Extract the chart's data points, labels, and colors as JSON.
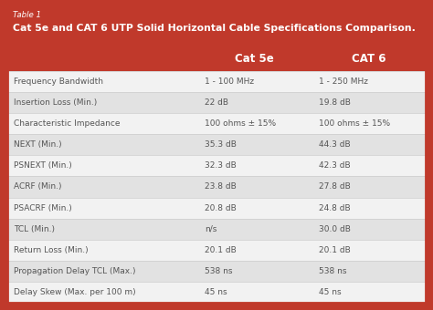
{
  "table_label": "Table 1",
  "title": "Cat 5e and CAT 6 UTP Solid Horizontal Cable Specifications Comparison.",
  "header": [
    "",
    "Cat 5e",
    "CAT 6"
  ],
  "rows": [
    [
      "Frequency Bandwidth",
      "1 - 100 MHz",
      "1 - 250 MHz"
    ],
    [
      "Insertion Loss (Min.)",
      "22 dB",
      "19.8 dB"
    ],
    [
      "Characteristic Impedance",
      "100 ohms ± 15%",
      "100 ohms ± 15%"
    ],
    [
      "NEXT (Min.)",
      "35.3 dB",
      "44.3 dB"
    ],
    [
      "PSNEXT (Min.)",
      "32.3 dB",
      "42.3 dB"
    ],
    [
      "ACRF (Min.)",
      "23.8 dB",
      "27.8 dB"
    ],
    [
      "PSACRF (Min.)",
      "20.8 dB",
      "24.8 dB"
    ],
    [
      "TCL (Min.)",
      "n/s",
      "30.0 dB"
    ],
    [
      "Return Loss (Min.)",
      "20.1 dB",
      "20.1 dB"
    ],
    [
      "Propagation Delay TCL (Max.)",
      "538 ns",
      "538 ns"
    ],
    [
      "Delay Skew (Max. per 100 m)",
      "45 ns",
      "45 ns"
    ]
  ],
  "header_bg": "#c0392b",
  "header_text_color": "#ffffff",
  "outer_bg": "#c0392b",
  "title_text_color": "#ffffff",
  "row_bg_light": "#f2f2f2",
  "row_bg_dark": "#e2e2e2",
  "cell_text_color": "#555555",
  "border_color": "#c0392b",
  "label_fontsize": 6.5,
  "header_fontsize": 8.5,
  "title_fontsize": 7.8,
  "table_label_fontsize": 6.2,
  "figwidth": 4.74,
  "figheight": 3.4,
  "dpi": 100
}
